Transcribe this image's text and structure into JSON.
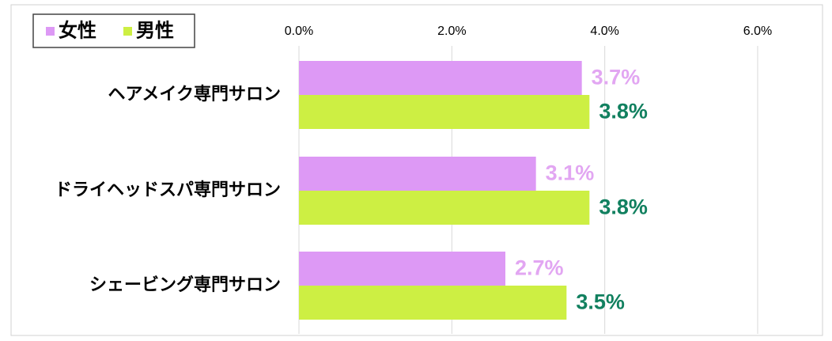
{
  "chart_data": {
    "type": "bar",
    "orientation": "horizontal",
    "categories": [
      "ヘアメイク専門サロン",
      "ドライヘッドスパ専門サロン",
      "シェービング専門サロン"
    ],
    "series": [
      {
        "name": "女性",
        "color": "#dd99f5",
        "label_color": "#e2a6f2",
        "values": [
          3.7,
          3.1,
          2.7
        ],
        "value_labels": [
          "3.7%",
          "3.1%",
          "2.7%"
        ]
      },
      {
        "name": "男性",
        "color": "#cdef43",
        "label_color": "#11805f",
        "values": [
          3.8,
          3.8,
          3.5
        ],
        "value_labels": [
          "3.8%",
          "3.8%",
          "3.5%"
        ]
      }
    ],
    "xlim": [
      0,
      6
    ],
    "xticks": [
      {
        "value": 0,
        "label": "0.0%"
      },
      {
        "value": 2,
        "label": "2.0%"
      },
      {
        "value": 4,
        "label": "4.0%"
      },
      {
        "value": 6,
        "label": "6.0%"
      }
    ],
    "grid": true,
    "legend": "top-left"
  }
}
